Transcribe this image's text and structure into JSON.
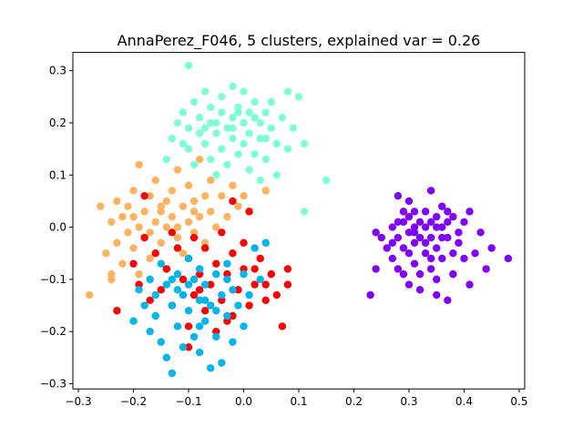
{
  "chart_data": {
    "type": "scatter",
    "title": "AnnaPerez_F046, 5 clusters, explained var = 0.26",
    "xlabel": "",
    "ylabel": "",
    "xlim": [
      -0.31,
      0.51
    ],
    "ylim": [
      -0.31,
      0.335
    ],
    "xticks": [
      -0.3,
      -0.2,
      -0.1,
      0.0,
      0.1,
      0.2,
      0.3,
      0.4,
      0.5
    ],
    "xtick_labels": [
      "−0.3",
      "−0.2",
      "−0.1",
      "0.0",
      "0.1",
      "0.2",
      "0.3",
      "0.4",
      "0.5"
    ],
    "yticks": [
      -0.3,
      -0.2,
      -0.1,
      0.0,
      0.1,
      0.2,
      0.3
    ],
    "ytick_labels": [
      "−0.3",
      "−0.2",
      "−0.1",
      "0.0",
      "0.1",
      "0.2",
      "0.3"
    ],
    "grid": false,
    "legend": "none",
    "series": [
      {
        "color": "#8000ff",
        "points": [
          [
            0.23,
            -0.13
          ],
          [
            0.24,
            -0.08
          ],
          [
            0.24,
            -0.01
          ],
          [
            0.25,
            -0.02
          ],
          [
            0.26,
            -0.04
          ],
          [
            0.27,
            -0.03
          ],
          [
            0.27,
            -0.06
          ],
          [
            0.27,
            0.0
          ],
          [
            0.28,
            -0.02
          ],
          [
            0.28,
            -0.08
          ],
          [
            0.28,
            0.01
          ],
          [
            0.28,
            0.06
          ],
          [
            0.29,
            -0.04
          ],
          [
            0.29,
            -0.09
          ],
          [
            0.29,
            0.03
          ],
          [
            0.3,
            -0.01
          ],
          [
            0.3,
            -0.05
          ],
          [
            0.3,
            0.05
          ],
          [
            0.3,
            -0.11
          ],
          [
            0.31,
            0.0
          ],
          [
            0.31,
            -0.07
          ],
          [
            0.31,
            0.03
          ],
          [
            0.31,
            -0.03
          ],
          [
            0.32,
            -0.02
          ],
          [
            0.32,
            0.01
          ],
          [
            0.32,
            -0.09
          ],
          [
            0.32,
            -0.12
          ],
          [
            0.33,
            0.03
          ],
          [
            0.33,
            -0.05
          ],
          [
            0.33,
            0.0
          ],
          [
            0.34,
            -0.02
          ],
          [
            0.34,
            0.07
          ],
          [
            0.34,
            -0.08
          ],
          [
            0.34,
            0.01
          ],
          [
            0.35,
            -0.04
          ],
          [
            0.35,
            0.02
          ],
          [
            0.35,
            -0.1
          ],
          [
            0.35,
            -0.13
          ],
          [
            0.36,
            0.0
          ],
          [
            0.36,
            -0.06
          ],
          [
            0.36,
            0.04
          ],
          [
            0.37,
            -0.02
          ],
          [
            0.37,
            -0.14
          ],
          [
            0.37,
            0.01
          ],
          [
            0.38,
            -0.05
          ],
          [
            0.38,
            0.02
          ],
          [
            0.38,
            -0.09
          ],
          [
            0.39,
            -0.01
          ],
          [
            0.39,
            -0.03
          ],
          [
            0.4,
            0.01
          ],
          [
            0.4,
            -0.06
          ],
          [
            0.41,
            -0.11
          ],
          [
            0.41,
            0.03
          ],
          [
            0.42,
            -0.05
          ],
          [
            0.43,
            -0.01
          ],
          [
            0.44,
            -0.08
          ],
          [
            0.45,
            -0.04
          ],
          [
            0.48,
            -0.06
          ],
          [
            0.3,
            0.02
          ],
          [
            0.33,
            -0.03
          ],
          [
            0.36,
            -0.02
          ],
          [
            0.31,
            -0.01
          ],
          [
            0.34,
            -0.06
          ],
          [
            0.29,
            0.01
          ],
          [
            0.37,
            0.03
          ],
          [
            0.35,
            0.0
          ]
        ]
      },
      {
        "color": "#7fffd4",
        "points": [
          [
            -0.14,
            0.13
          ],
          [
            -0.13,
            0.17
          ],
          [
            -0.12,
            0.2
          ],
          [
            -0.11,
            0.16
          ],
          [
            -0.11,
            0.22
          ],
          [
            -0.1,
            0.15
          ],
          [
            -0.1,
            0.19
          ],
          [
            -0.09,
            0.24
          ],
          [
            -0.09,
            0.12
          ],
          [
            -0.08,
            0.18
          ],
          [
            -0.08,
            0.21
          ],
          [
            -0.07,
            0.16
          ],
          [
            -0.07,
            0.26
          ],
          [
            -0.06,
            0.2
          ],
          [
            -0.06,
            0.13
          ],
          [
            -0.06,
            0.23
          ],
          [
            -0.05,
            0.18
          ],
          [
            -0.05,
            0.1
          ],
          [
            -0.04,
            0.22
          ],
          [
            -0.04,
            0.15
          ],
          [
            -0.04,
            0.25
          ],
          [
            -0.03,
            0.19
          ],
          [
            -0.03,
            0.12
          ],
          [
            -0.02,
            0.21
          ],
          [
            -0.02,
            0.17
          ],
          [
            -0.02,
            0.27
          ],
          [
            -0.01,
            0.23
          ],
          [
            -0.01,
            0.14
          ],
          [
            0.0,
            0.2
          ],
          [
            0.0,
            0.26
          ],
          [
            0.0,
            0.16
          ],
          [
            0.01,
            0.22
          ],
          [
            0.01,
            0.11
          ],
          [
            0.01,
            0.18
          ],
          [
            0.02,
            0.24
          ],
          [
            0.02,
            0.14
          ],
          [
            0.03,
            0.2
          ],
          [
            0.03,
            0.09
          ],
          [
            0.03,
            0.17
          ],
          [
            0.04,
            0.22
          ],
          [
            0.04,
            0.13
          ],
          [
            0.05,
            0.19
          ],
          [
            0.05,
            0.24
          ],
          [
            0.06,
            0.16
          ],
          [
            0.06,
            0.1
          ],
          [
            0.07,
            0.21
          ],
          [
            0.08,
            0.26
          ],
          [
            0.08,
            0.15
          ],
          [
            0.09,
            0.19
          ],
          [
            0.1,
            0.25
          ],
          [
            0.11,
            0.16
          ],
          [
            0.11,
            0.03
          ],
          [
            0.15,
            0.09
          ],
          [
            -0.1,
            0.31
          ],
          [
            -0.05,
            0.2
          ],
          [
            -0.02,
            0.19
          ],
          [
            0.02,
            0.21
          ],
          [
            -0.07,
            0.19
          ],
          [
            0.04,
            0.17
          ],
          [
            -0.01,
            0.22
          ]
        ]
      },
      {
        "color": "#ffb360",
        "points": [
          [
            -0.28,
            -0.13
          ],
          [
            -0.26,
            0.04
          ],
          [
            -0.25,
            -0.05
          ],
          [
            -0.24,
            -0.1
          ],
          [
            -0.24,
            0.01
          ],
          [
            -0.23,
            -0.03
          ],
          [
            -0.23,
            0.05
          ],
          [
            -0.22,
            -0.07
          ],
          [
            -0.22,
            0.02
          ],
          [
            -0.21,
            -0.01
          ],
          [
            -0.21,
            0.04
          ],
          [
            -0.2,
            -0.04
          ],
          [
            -0.2,
            0.07
          ],
          [
            -0.19,
            0.0
          ],
          [
            -0.19,
            -0.09
          ],
          [
            -0.18,
            0.03
          ],
          [
            -0.18,
            -0.02
          ],
          [
            -0.17,
            0.06
          ],
          [
            -0.17,
            -0.06
          ],
          [
            -0.16,
            0.01
          ],
          [
            -0.16,
            0.09
          ],
          [
            -0.15,
            -0.03
          ],
          [
            -0.15,
            0.04
          ],
          [
            -0.14,
            0.0
          ],
          [
            -0.14,
            -0.08
          ],
          [
            -0.13,
            0.07
          ],
          [
            -0.13,
            0.02
          ],
          [
            -0.12,
            -0.02
          ],
          [
            -0.12,
            0.11
          ],
          [
            -0.11,
            0.04
          ],
          [
            -0.11,
            -0.05
          ],
          [
            -0.1,
            0.01
          ],
          [
            -0.1,
            0.08
          ],
          [
            -0.09,
            -0.01
          ],
          [
            -0.09,
            0.05
          ],
          [
            -0.08,
            0.02
          ],
          [
            -0.08,
            0.13
          ],
          [
            -0.07,
            0.06
          ],
          [
            -0.07,
            -0.03
          ],
          [
            -0.06,
            0.03
          ],
          [
            -0.06,
            0.09
          ],
          [
            -0.05,
            0.0
          ],
          [
            -0.04,
            0.06
          ],
          [
            -0.03,
            0.02
          ],
          [
            -0.02,
            0.08
          ],
          [
            -0.01,
            0.04
          ],
          [
            0.0,
            0.06
          ],
          [
            0.04,
            0.07
          ],
          [
            -0.19,
            0.12
          ],
          [
            -0.24,
            -0.09
          ],
          [
            -0.15,
            0.03
          ],
          [
            -0.12,
            0.0
          ],
          [
            -0.17,
            -0.01
          ],
          [
            -0.09,
            0.03
          ],
          [
            -0.2,
            0.02
          ],
          [
            -0.14,
            0.05
          ]
        ]
      },
      {
        "color": "#ff0000",
        "points": [
          [
            -0.23,
            -0.16
          ],
          [
            -0.2,
            -0.07
          ],
          [
            -0.19,
            -0.11
          ],
          [
            -0.18,
            -0.02
          ],
          [
            -0.17,
            -0.14
          ],
          [
            -0.16,
            -0.05
          ],
          [
            -0.15,
            -0.12
          ],
          [
            -0.14,
            -0.08
          ],
          [
            -0.13,
            -0.01
          ],
          [
            -0.13,
            -0.15
          ],
          [
            -0.12,
            -0.04
          ],
          [
            -0.11,
            -0.1
          ],
          [
            -0.1,
            -0.19
          ],
          [
            -0.1,
            -0.06
          ],
          [
            -0.09,
            -0.13
          ],
          [
            -0.09,
            -0.02
          ],
          [
            -0.08,
            -0.09
          ],
          [
            -0.07,
            -0.16
          ],
          [
            -0.07,
            -0.04
          ],
          [
            -0.06,
            -0.11
          ],
          [
            -0.05,
            -0.07
          ],
          [
            -0.05,
            -0.2
          ],
          [
            -0.04,
            -0.01
          ],
          [
            -0.04,
            -0.14
          ],
          [
            -0.03,
            -0.09
          ],
          [
            -0.02,
            -0.05
          ],
          [
            -0.02,
            -0.17
          ],
          [
            -0.01,
            -0.12
          ],
          [
            0.0,
            -0.03
          ],
          [
            0.0,
            -0.08
          ],
          [
            0.01,
            -0.15
          ],
          [
            0.01,
            0.03
          ],
          [
            0.02,
            -0.11
          ],
          [
            0.03,
            -0.06
          ],
          [
            0.04,
            -0.14
          ],
          [
            0.05,
            -0.09
          ],
          [
            0.06,
            -0.13
          ],
          [
            0.07,
            -0.19
          ],
          [
            0.08,
            -0.11
          ],
          [
            0.08,
            -0.08
          ],
          [
            -0.1,
            -0.23
          ],
          [
            -0.02,
            0.05
          ],
          [
            -0.03,
            -0.18
          ],
          [
            -0.18,
            0.06
          ],
          [
            0.02,
            -0.08
          ],
          [
            -0.08,
            -0.12
          ],
          [
            0.04,
            -0.11
          ]
        ]
      },
      {
        "color": "#00b5eb",
        "points": [
          [
            -0.2,
            -0.18
          ],
          [
            -0.19,
            -0.12
          ],
          [
            -0.18,
            -0.15
          ],
          [
            -0.17,
            -0.1
          ],
          [
            -0.17,
            -0.2
          ],
          [
            -0.16,
            -0.13
          ],
          [
            -0.16,
            -0.17
          ],
          [
            -0.15,
            -0.07
          ],
          [
            -0.15,
            -0.22
          ],
          [
            -0.14,
            -0.11
          ],
          [
            -0.14,
            -0.25
          ],
          [
            -0.13,
            -0.15
          ],
          [
            -0.13,
            -0.28
          ],
          [
            -0.12,
            -0.09
          ],
          [
            -0.12,
            -0.19
          ],
          [
            -0.11,
            -0.13
          ],
          [
            -0.11,
            -0.23
          ],
          [
            -0.1,
            -0.06
          ],
          [
            -0.1,
            -0.16
          ],
          [
            -0.09,
            -0.1
          ],
          [
            -0.09,
            -0.21
          ],
          [
            -0.08,
            -0.14
          ],
          [
            -0.08,
            -0.08
          ],
          [
            -0.08,
            -0.24
          ],
          [
            -0.07,
            -0.18
          ],
          [
            -0.07,
            -0.11
          ],
          [
            -0.06,
            -0.27
          ],
          [
            -0.06,
            -0.15
          ],
          [
            -0.05,
            -0.09
          ],
          [
            -0.05,
            -0.21
          ],
          [
            -0.04,
            -0.13
          ],
          [
            -0.04,
            -0.26
          ],
          [
            -0.03,
            -0.17
          ],
          [
            -0.03,
            -0.07
          ],
          [
            -0.02,
            -0.22
          ],
          [
            -0.02,
            -0.12
          ],
          [
            -0.01,
            -0.15
          ],
          [
            0.0,
            -0.09
          ],
          [
            0.0,
            -0.19
          ],
          [
            0.01,
            -0.13
          ],
          [
            0.02,
            -0.04
          ],
          [
            0.03,
            -0.1
          ],
          [
            0.04,
            -0.03
          ],
          [
            -0.12,
            -0.12
          ],
          [
            -0.07,
            -0.14
          ],
          [
            -0.1,
            -0.11
          ],
          [
            -0.05,
            -0.16
          ],
          [
            -0.13,
            -0.1
          ],
          [
            -0.08,
            -0.19
          ],
          [
            -0.03,
            -0.1
          ]
        ]
      }
    ]
  }
}
